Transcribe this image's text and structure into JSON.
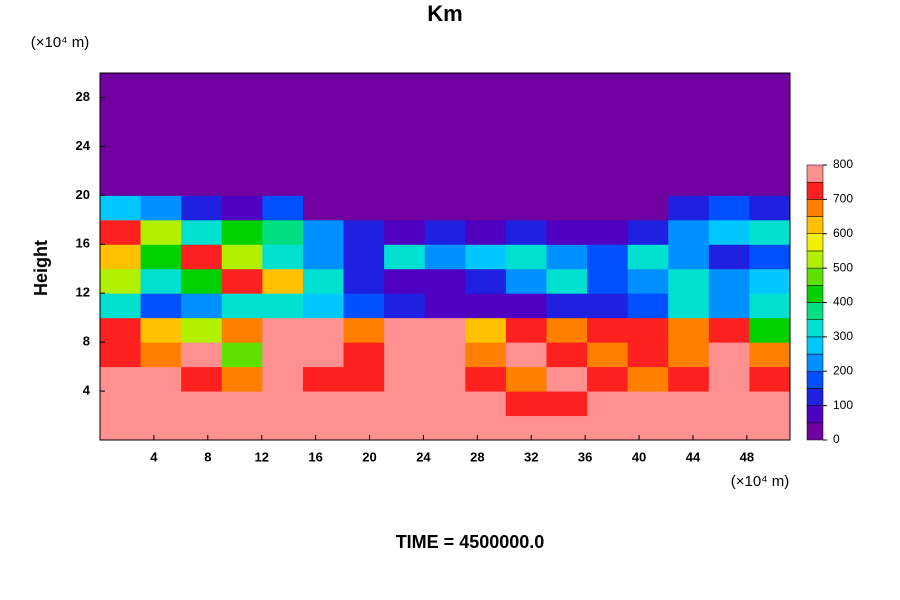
{
  "chart_data": {
    "type": "heatmap",
    "title": "Km",
    "y_unit": "(×10⁴ m)",
    "x_unit": "(×10⁴ m)",
    "ylabel": "Height",
    "footer": "TIME = 4500000.0",
    "xlim": [
      0,
      51.2
    ],
    "ylim": [
      0,
      30
    ],
    "xticks": [
      4,
      8,
      12,
      16,
      20,
      24,
      28,
      32,
      36,
      40,
      44,
      48
    ],
    "yticks": [
      4,
      8,
      12,
      16,
      20,
      24,
      28
    ],
    "z": [
      [
        800,
        800,
        800,
        800,
        800,
        800,
        800,
        800,
        800,
        800,
        800,
        800,
        800,
        800,
        750,
        800,
        800
      ],
      [
        800,
        800,
        800,
        750,
        800,
        800,
        800,
        800,
        800,
        800,
        700,
        700,
        800,
        800,
        800,
        800,
        750
      ],
      [
        750,
        800,
        700,
        650,
        800,
        700,
        700,
        750,
        800,
        700,
        650,
        750,
        700,
        650,
        700,
        800,
        700
      ],
      [
        700,
        650,
        750,
        450,
        800,
        750,
        700,
        800,
        800,
        650,
        750,
        700,
        650,
        700,
        650,
        800,
        650
      ],
      [
        700,
        600,
        500,
        650,
        750,
        800,
        650,
        800,
        750,
        600,
        700,
        650,
        700,
        700,
        650,
        700,
        400
      ],
      [
        300,
        150,
        200,
        300,
        300,
        250,
        150,
        100,
        50,
        50,
        50,
        100,
        100,
        150,
        300,
        200,
        300
      ],
      [
        500,
        300,
        400,
        700,
        600,
        300,
        100,
        50,
        50,
        100,
        200,
        300,
        150,
        200,
        300,
        200,
        250
      ],
      [
        600,
        400,
        700,
        500,
        300,
        200,
        100,
        300,
        200,
        250,
        300,
        200,
        150,
        300,
        200,
        100,
        150
      ],
      [
        700,
        500,
        300,
        400,
        350,
        200,
        100,
        50,
        100,
        50,
        100,
        50,
        50,
        100,
        200,
        250,
        300
      ],
      [
        250,
        200,
        100,
        50,
        150,
        0,
        0,
        0,
        0,
        0,
        0,
        0,
        0,
        0,
        100,
        150,
        100
      ],
      [
        0,
        0,
        0,
        0,
        0,
        0,
        0,
        0,
        0,
        0,
        0,
        0,
        0,
        0,
        0,
        0,
        0
      ],
      [
        0,
        0,
        0,
        0,
        0,
        0,
        0,
        0,
        0,
        0,
        0,
        0,
        0,
        0,
        0,
        0,
        0
      ],
      [
        0,
        0,
        0,
        0,
        0,
        0,
        0,
        0,
        0,
        0,
        0,
        0,
        0,
        0,
        0,
        0,
        0
      ],
      [
        0,
        0,
        0,
        0,
        0,
        0,
        0,
        0,
        0,
        0,
        0,
        0,
        0,
        0,
        0,
        0,
        0
      ],
      [
        0,
        0,
        0,
        0,
        0,
        0,
        0,
        0,
        0,
        0,
        0,
        0,
        0,
        0,
        0,
        0,
        0
      ]
    ],
    "colorbar": {
      "ticks": [
        0,
        100,
        200,
        300,
        400,
        500,
        600,
        700,
        800
      ],
      "levels": [
        0,
        50,
        100,
        150,
        200,
        250,
        300,
        350,
        400,
        450,
        500,
        550,
        600,
        650,
        700,
        750,
        800
      ],
      "colors": [
        "#7000a0",
        "#5000c0",
        "#2020e0",
        "#0050ff",
        "#0090ff",
        "#00c8ff",
        "#00e0d0",
        "#00e080",
        "#00d000",
        "#60e000",
        "#b0f000",
        "#f0f000",
        "#ffc000",
        "#ff8000",
        "#ff2020",
        "#ff9090"
      ]
    }
  }
}
